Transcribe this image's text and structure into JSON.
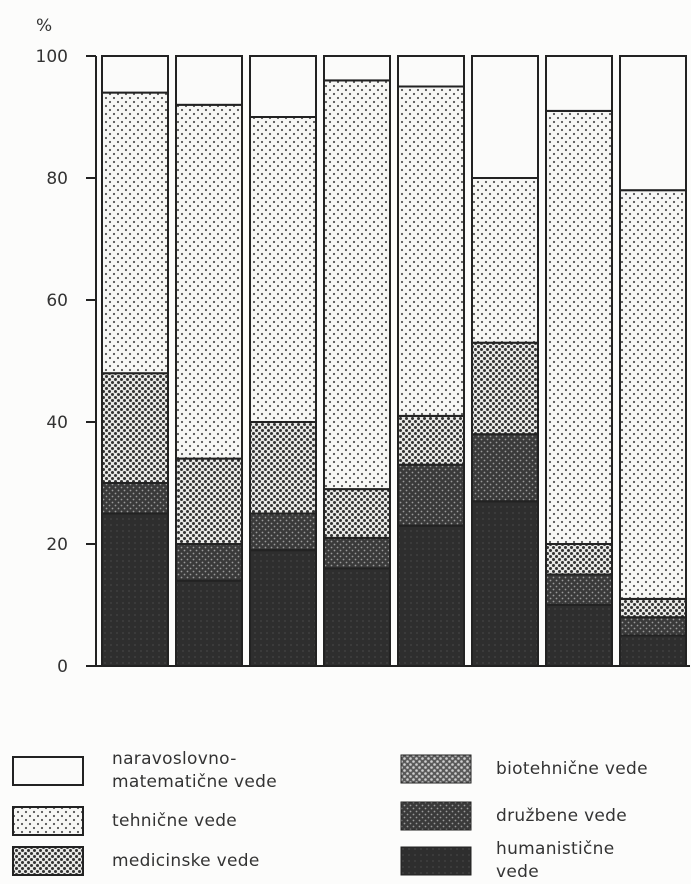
{
  "chart_data": {
    "type": "bar",
    "stacked": true,
    "unit_label": "%",
    "ylim": [
      0,
      100
    ],
    "yticks": [
      0,
      20,
      40,
      60,
      80,
      100
    ],
    "categories": [
      "",
      "",
      "",
      "",
      "",
      "",
      "",
      ""
    ],
    "series": [
      {
        "name": "humanistične vede",
        "fill": "humanisticne",
        "values": [
          25,
          14,
          19,
          16,
          23,
          27,
          10,
          5
        ]
      },
      {
        "name": "družbene vede",
        "fill": "druzbene",
        "values": [
          5,
          6,
          6,
          5,
          10,
          11,
          5,
          3
        ]
      },
      {
        "name": "biotehnične vede",
        "fill": "biotehnicne",
        "values": [
          0,
          0,
          0,
          0,
          0,
          0,
          0,
          0
        ]
      },
      {
        "name": "medicinske vede",
        "fill": "medicinske",
        "values": [
          18,
          14,
          15,
          8,
          8,
          15,
          5,
          3
        ]
      },
      {
        "name": "tehnične vede",
        "fill": "tehnicne",
        "values": [
          46,
          58,
          50,
          67,
          54,
          27,
          71,
          67
        ]
      },
      {
        "name": "naravoslovno-matematične vede",
        "fill": "naravoslovne",
        "values": [
          6,
          8,
          10,
          4,
          5,
          20,
          9,
          22
        ]
      }
    ],
    "grid": false
  },
  "legend": {
    "items": [
      {
        "label_1": "naravoslovno-",
        "label_2": "matematične vede",
        "fill": "naravoslovne"
      },
      {
        "label_1": "tehnične vede",
        "label_2": "",
        "fill": "tehnicne"
      },
      {
        "label_1": "medicinske vede",
        "label_2": "",
        "fill": "medicinske"
      },
      {
        "label_1": "biotehnične vede",
        "label_2": "",
        "fill": "biotehnicne"
      },
      {
        "label_1": "družbene vede",
        "label_2": "",
        "fill": "druzbene"
      },
      {
        "label_1": "humanistične",
        "label_2": "vede",
        "fill": "humanisticne"
      }
    ]
  }
}
